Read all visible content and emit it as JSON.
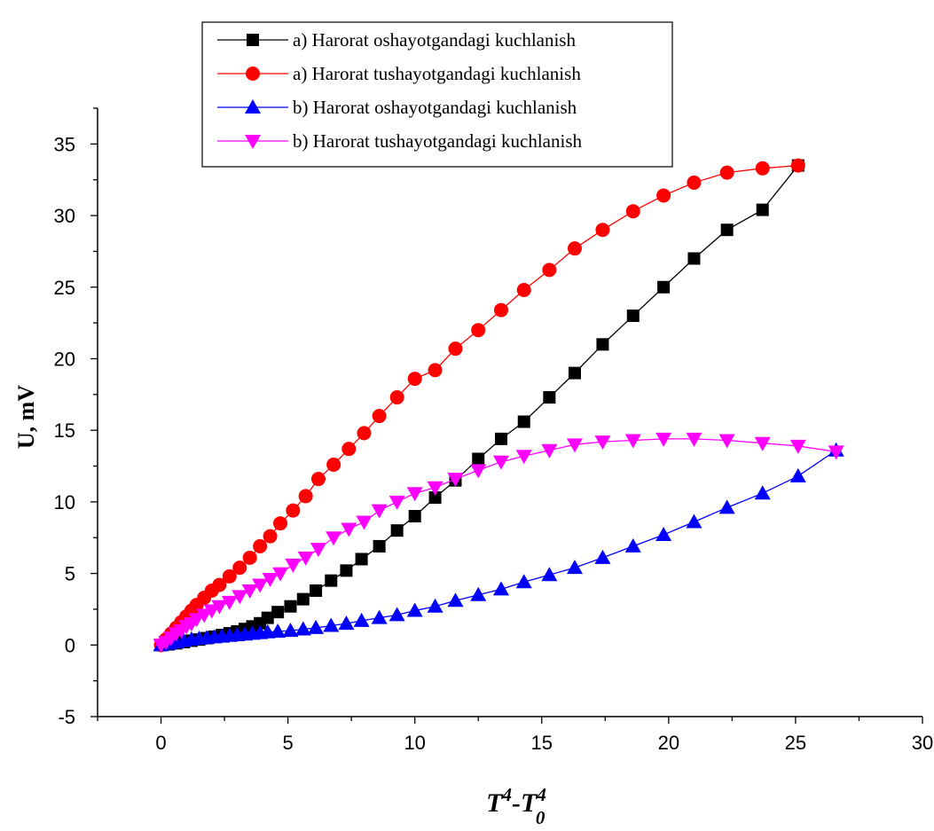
{
  "chart_data": {
    "type": "line",
    "title": "",
    "xlabel": {
      "base1": "T",
      "sup1": "4",
      "sep": "-",
      "base2": "T",
      "sup2": "4",
      "sub2": "0"
    },
    "ylabel": "U, mV",
    "xlim": [
      -2.5,
      30
    ],
    "ylim": [
      -5,
      37.5
    ],
    "x_ticks": [
      0,
      5,
      10,
      15,
      20,
      25,
      30
    ],
    "y_ticks": [
      -5,
      0,
      5,
      10,
      15,
      20,
      25,
      30,
      35
    ],
    "grid": false,
    "legend_position": "top-center",
    "series": [
      {
        "name": "a) Harorat oshayotgandagi kuchlanish",
        "color": "#000000",
        "marker": "square",
        "points": [
          [
            0,
            0
          ],
          [
            0.3,
            0.05
          ],
          [
            0.6,
            0.12
          ],
          [
            0.9,
            0.2
          ],
          [
            1.2,
            0.3
          ],
          [
            1.5,
            0.38
          ],
          [
            1.8,
            0.48
          ],
          [
            2.1,
            0.58
          ],
          [
            2.4,
            0.7
          ],
          [
            2.7,
            0.82
          ],
          [
            3.0,
            0.95
          ],
          [
            3.3,
            1.12
          ],
          [
            3.6,
            1.3
          ],
          [
            3.9,
            1.52
          ],
          [
            4.2,
            1.9
          ],
          [
            4.6,
            2.3
          ],
          [
            5.1,
            2.7
          ],
          [
            5.6,
            3.2
          ],
          [
            6.1,
            3.8
          ],
          [
            6.7,
            4.5
          ],
          [
            7.3,
            5.2
          ],
          [
            7.9,
            6.0
          ],
          [
            8.6,
            6.9
          ],
          [
            9.3,
            8.0
          ],
          [
            10.0,
            9.0
          ],
          [
            10.8,
            10.3
          ],
          [
            11.6,
            11.5
          ],
          [
            12.5,
            13.0
          ],
          [
            13.4,
            14.4
          ],
          [
            14.3,
            15.6
          ],
          [
            15.3,
            17.3
          ],
          [
            16.3,
            19.0
          ],
          [
            17.4,
            21.0
          ],
          [
            18.6,
            23.0
          ],
          [
            19.8,
            25.0
          ],
          [
            21.0,
            27.0
          ],
          [
            22.3,
            29.0
          ],
          [
            23.7,
            30.4
          ],
          [
            25.1,
            33.5
          ]
        ]
      },
      {
        "name": "a) Harorat tushayotgandagi kuchlanish",
        "color": "#ff0000",
        "marker": "circle",
        "points": [
          [
            0,
            0
          ],
          [
            0.2,
            0.4
          ],
          [
            0.4,
            0.8
          ],
          [
            0.6,
            1.2
          ],
          [
            0.8,
            1.6
          ],
          [
            1.0,
            2.0
          ],
          [
            1.2,
            2.4
          ],
          [
            1.4,
            2.8
          ],
          [
            1.7,
            3.3
          ],
          [
            2.0,
            3.8
          ],
          [
            2.3,
            4.2
          ],
          [
            2.7,
            4.8
          ],
          [
            3.1,
            5.4
          ],
          [
            3.5,
            6.1
          ],
          [
            3.9,
            6.9
          ],
          [
            4.3,
            7.6
          ],
          [
            4.7,
            8.5
          ],
          [
            5.2,
            9.4
          ],
          [
            5.7,
            10.4
          ],
          [
            6.2,
            11.6
          ],
          [
            6.8,
            12.6
          ],
          [
            7.4,
            13.7
          ],
          [
            8.0,
            14.8
          ],
          [
            8.6,
            16.0
          ],
          [
            9.3,
            17.3
          ],
          [
            10.0,
            18.6
          ],
          [
            10.8,
            19.2
          ],
          [
            11.6,
            20.7
          ],
          [
            12.5,
            22.0
          ],
          [
            13.4,
            23.4
          ],
          [
            14.3,
            24.8
          ],
          [
            15.3,
            26.2
          ],
          [
            16.3,
            27.7
          ],
          [
            17.4,
            29.0
          ],
          [
            18.6,
            30.3
          ],
          [
            19.8,
            31.4
          ],
          [
            21.0,
            32.3
          ],
          [
            22.3,
            33.0
          ],
          [
            23.7,
            33.3
          ],
          [
            25.1,
            33.5
          ]
        ]
      },
      {
        "name": "b) Harorat oshayotgandagi kuchlanish",
        "color": "#0000ff",
        "marker": "triangle-up",
        "points": [
          [
            0,
            0
          ],
          [
            0.3,
            0.1
          ],
          [
            0.6,
            0.2
          ],
          [
            0.9,
            0.3
          ],
          [
            1.2,
            0.4
          ],
          [
            1.5,
            0.45
          ],
          [
            1.8,
            0.5
          ],
          [
            2.1,
            0.55
          ],
          [
            2.4,
            0.6
          ],
          [
            2.7,
            0.65
          ],
          [
            3.0,
            0.7
          ],
          [
            3.3,
            0.75
          ],
          [
            3.6,
            0.8
          ],
          [
            3.9,
            0.85
          ],
          [
            4.2,
            0.9
          ],
          [
            4.6,
            0.95
          ],
          [
            5.1,
            1.0
          ],
          [
            5.6,
            1.1
          ],
          [
            6.1,
            1.2
          ],
          [
            6.7,
            1.35
          ],
          [
            7.3,
            1.5
          ],
          [
            7.9,
            1.7
          ],
          [
            8.6,
            1.9
          ],
          [
            9.3,
            2.1
          ],
          [
            10.0,
            2.4
          ],
          [
            10.8,
            2.7
          ],
          [
            11.6,
            3.1
          ],
          [
            12.5,
            3.5
          ],
          [
            13.4,
            3.9
          ],
          [
            14.3,
            4.4
          ],
          [
            15.3,
            4.9
          ],
          [
            16.3,
            5.4
          ],
          [
            17.4,
            6.1
          ],
          [
            18.6,
            6.9
          ],
          [
            19.8,
            7.7
          ],
          [
            21.0,
            8.6
          ],
          [
            22.3,
            9.6
          ],
          [
            23.7,
            10.6
          ],
          [
            25.1,
            11.8
          ],
          [
            26.6,
            13.6
          ]
        ]
      },
      {
        "name": "b) Harorat tushayotgandagi kuchlanish",
        "color": "#ff00ff",
        "marker": "triangle-down",
        "points": [
          [
            0,
            0
          ],
          [
            0.2,
            0.2
          ],
          [
            0.4,
            0.5
          ],
          [
            0.6,
            0.8
          ],
          [
            0.8,
            1.0
          ],
          [
            1.0,
            1.3
          ],
          [
            1.2,
            1.5
          ],
          [
            1.4,
            1.8
          ],
          [
            1.7,
            2.1
          ],
          [
            2.0,
            2.4
          ],
          [
            2.3,
            2.7
          ],
          [
            2.7,
            3.0
          ],
          [
            3.1,
            3.4
          ],
          [
            3.5,
            3.8
          ],
          [
            3.9,
            4.2
          ],
          [
            4.3,
            4.6
          ],
          [
            4.7,
            5.0
          ],
          [
            5.2,
            5.6
          ],
          [
            5.7,
            6.1
          ],
          [
            6.2,
            6.7
          ],
          [
            6.8,
            7.5
          ],
          [
            7.4,
            8.1
          ],
          [
            8.0,
            8.6
          ],
          [
            8.6,
            9.4
          ],
          [
            9.3,
            10.0
          ],
          [
            10.0,
            10.6
          ],
          [
            10.8,
            11.0
          ],
          [
            11.6,
            11.6
          ],
          [
            12.5,
            12.2
          ],
          [
            13.4,
            12.8
          ],
          [
            14.3,
            13.2
          ],
          [
            15.3,
            13.6
          ],
          [
            16.3,
            14.0
          ],
          [
            17.4,
            14.2
          ],
          [
            18.6,
            14.3
          ],
          [
            19.8,
            14.4
          ],
          [
            21.0,
            14.4
          ],
          [
            22.3,
            14.3
          ],
          [
            23.7,
            14.1
          ],
          [
            25.1,
            13.9
          ],
          [
            26.6,
            13.5
          ]
        ]
      }
    ]
  }
}
